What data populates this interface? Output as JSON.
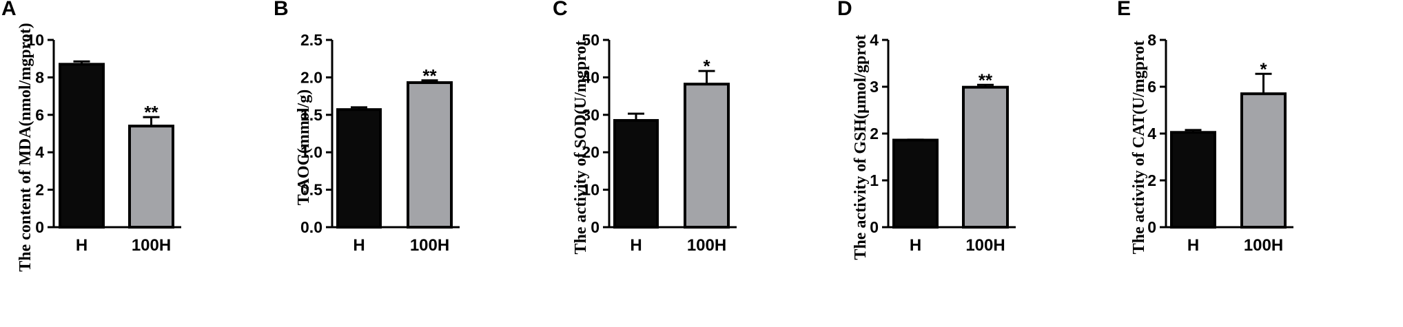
{
  "chart_data": [
    {
      "panel": "A",
      "type": "bar",
      "categories": [
        "H",
        "100H"
      ],
      "values": [
        8.7,
        5.4
      ],
      "errors": [
        0.15,
        0.48
      ],
      "significance": [
        "",
        "**"
      ],
      "ylabel": "The content of MDA(nmol/mgprot)",
      "ylim": [
        0,
        10
      ],
      "yticks": [
        "0",
        "2",
        "4",
        "6",
        "8",
        "10"
      ],
      "colors": [
        "#0a0a0a",
        "#a3a4a8"
      ]
    },
    {
      "panel": "B",
      "type": "bar",
      "categories": [
        "H",
        "100H"
      ],
      "values": [
        1.57,
        1.93
      ],
      "errors": [
        0.03,
        0.03
      ],
      "significance": [
        "",
        "**"
      ],
      "ylabel": "T-AOC(mmol/g)",
      "ylim": [
        0,
        2.5
      ],
      "yticks": [
        "0.0",
        "0.5",
        "1.0",
        "1.5",
        "2.0",
        "2.5"
      ],
      "colors": [
        "#0a0a0a",
        "#a3a4a8"
      ]
    },
    {
      "panel": "C",
      "type": "bar",
      "categories": [
        "H",
        "100H"
      ],
      "values": [
        28.5,
        38.2
      ],
      "errors": [
        1.8,
        3.5
      ],
      "significance": [
        "",
        "*"
      ],
      "ylabel": "The activity of SOD(U/mgprot",
      "ylim": [
        0,
        50
      ],
      "yticks": [
        "0",
        "10",
        "20",
        "30",
        "40",
        "50"
      ],
      "colors": [
        "#0a0a0a",
        "#a3a4a8"
      ]
    },
    {
      "panel": "D",
      "type": "bar",
      "categories": [
        "H",
        "100H"
      ],
      "values": [
        1.86,
        2.99
      ],
      "errors": [
        0.01,
        0.05
      ],
      "significance": [
        "",
        "**"
      ],
      "ylabel": "The activity of GSH(μmol/gprot",
      "ylim": [
        0,
        4
      ],
      "yticks": [
        "0",
        "1",
        "2",
        "3",
        "4"
      ],
      "colors": [
        "#0a0a0a",
        "#a3a4a8"
      ]
    },
    {
      "panel": "E",
      "type": "bar",
      "categories": [
        "H",
        "100H"
      ],
      "values": [
        4.05,
        5.7
      ],
      "errors": [
        0.1,
        0.85
      ],
      "significance": [
        "",
        "*"
      ],
      "ylabel": "The activity of CAT(U/mgprot",
      "ylim": [
        0,
        8
      ],
      "yticks": [
        "0",
        "2",
        "4",
        "6",
        "8"
      ],
      "colors": [
        "#0a0a0a",
        "#a3a4a8"
      ]
    }
  ]
}
